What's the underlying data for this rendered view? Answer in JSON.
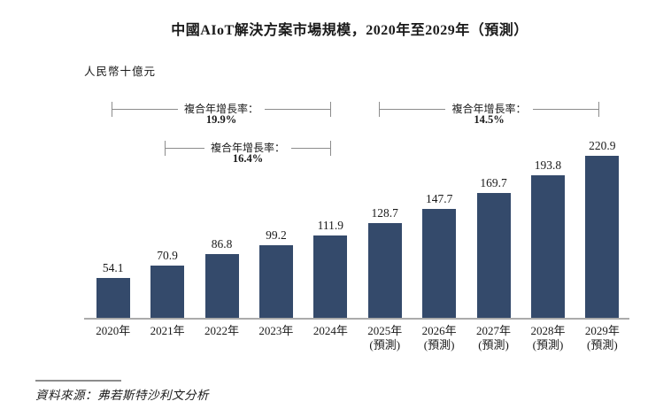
{
  "title": "中國AIoT解決方案市場規模，2020年至2029年（預測）",
  "unit_label": "人民幣十億元",
  "source": "資料來源：弗若斯特沙利文分析",
  "colors": {
    "bar": "#344a6b",
    "axis": "#ababab",
    "bracket": "#8c8c8c",
    "text": "#1a1a1a",
    "background": "#ffffff"
  },
  "chart_data": {
    "type": "bar",
    "title": "中國AIoT解決方案市場規模，2020年至2029年（預測）",
    "ylabel": "人民幣十億元",
    "xlabel": "",
    "gridlines": false,
    "y_axis_shown": false,
    "value_labels_shown": true,
    "categories": [
      "2020年",
      "2021年",
      "2022年",
      "2023年",
      "2024年",
      "2025年\n(預測)",
      "2026年\n(預測)",
      "2027年\n(預測)",
      "2028年\n(預測)",
      "2029年\n(預測)"
    ],
    "values": [
      54.1,
      70.9,
      86.8,
      99.2,
      111.9,
      128.7,
      147.7,
      169.7,
      193.8,
      220.9
    ],
    "annotations": [
      {
        "label": "複合年增長率：",
        "value": "19.9%",
        "span": "2020年-2024年"
      },
      {
        "label": "複合年增長率：",
        "value": "16.4%",
        "span": "2021年-2024年"
      },
      {
        "label": "複合年增長率：",
        "value": "14.5%",
        "span": "2024年-2029年"
      }
    ]
  }
}
